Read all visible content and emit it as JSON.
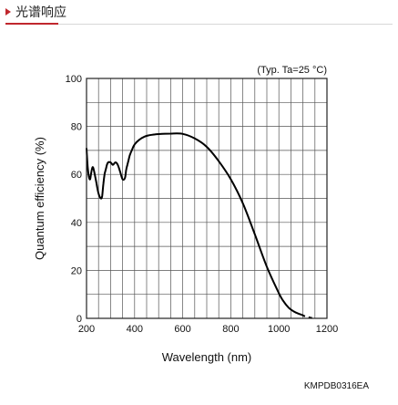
{
  "header": {
    "title": "光谱响应"
  },
  "chart_data": {
    "type": "line",
    "xlabel": "Wavelength (nm)",
    "ylabel": "Quantum efficiency (%)",
    "annotation": "(Typ. Ta=25 °C)",
    "xlim": [
      200,
      1200
    ],
    "ylim": [
      0,
      100
    ],
    "xticks": [
      "200",
      "400",
      "600",
      "800",
      "1000",
      "1200"
    ],
    "yticks": [
      "0",
      "20",
      "40",
      "60",
      "80",
      "100"
    ],
    "grid": true,
    "series": [
      {
        "style": "solid",
        "x": [
          200,
          205,
          210,
          215,
          220,
          225,
          230,
          240,
          250,
          260,
          265,
          270,
          275,
          280,
          285,
          290,
          300,
          310,
          320,
          330,
          340,
          350,
          360,
          365,
          370,
          375,
          380,
          390,
          400,
          420,
          440,
          460,
          480,
          500,
          550,
          600,
          650,
          700,
          750,
          800,
          850,
          900,
          950,
          1000,
          1020,
          1040,
          1060,
          1080,
          1095
        ],
        "y": [
          71,
          63,
          59,
          58,
          61,
          63,
          62,
          57,
          52,
          50,
          51,
          56,
          60,
          62,
          64,
          65,
          65,
          64,
          65,
          64,
          61,
          58,
          58.5,
          62,
          64,
          66,
          68,
          70.5,
          72.5,
          74.5,
          75.7,
          76.3,
          76.6,
          76.8,
          77,
          76.9,
          75,
          71.5,
          65.5,
          58,
          48,
          35,
          21.5,
          10.5,
          7,
          4.5,
          3,
          2,
          1.5
        ]
      },
      {
        "style": "dashed",
        "x": [
          1095,
          1110,
          1130,
          1150
        ],
        "y": [
          1.5,
          0.8,
          0.3,
          0
        ]
      }
    ]
  },
  "footer": {
    "code": "KMPDB0316EA"
  }
}
